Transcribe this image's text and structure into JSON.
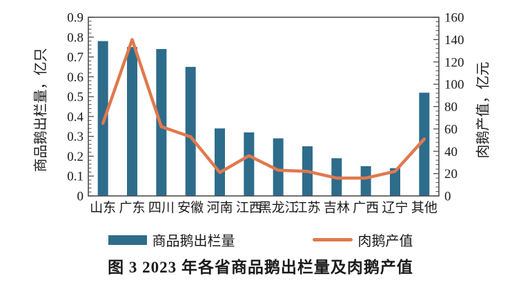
{
  "figure": {
    "caption": "图 3  2023 年各省商品鹅出栏量及肉鹅产值"
  },
  "colors": {
    "bar": "#2e6c8c",
    "line": "#e0794e",
    "axis": "#4d4d4d",
    "text": "#1a1a1a"
  },
  "chart_data": {
    "type": "bar+line combo, dual y-axis",
    "categories": [
      "山东",
      "广东",
      "四川",
      "安徽",
      "河南",
      "江西",
      "黑龙江",
      "江苏",
      "吉林",
      "广西",
      "辽宁",
      "其他"
    ],
    "series": [
      {
        "name": "商品鹅出栏量",
        "type": "bar",
        "axis": "left",
        "color": "#2e6c8c",
        "values": [
          0.78,
          0.75,
          0.74,
          0.65,
          0.34,
          0.32,
          0.29,
          0.25,
          0.19,
          0.15,
          0.14,
          0.52
        ]
      },
      {
        "name": "肉鹅产值",
        "type": "line",
        "axis": "right",
        "color": "#e0794e",
        "values": [
          65,
          140,
          62,
          53,
          21,
          36,
          23,
          22,
          16,
          16,
          22,
          51
        ]
      }
    ],
    "left_axis": {
      "label": "商品鹅出栏量，亿只",
      "min": 0,
      "max": 0.9,
      "major_step": 0.1,
      "minor_step": 0.02
    },
    "right_axis": {
      "label": "肉鹅产值，亿元",
      "min": 0,
      "max": 160,
      "major_step": 20,
      "minor_step": 4
    },
    "legend_position": "bottom",
    "grid": false,
    "title": "图 3  2023 年各省商品鹅出栏量及肉鹅产值"
  },
  "legend": {
    "bar_label": "商品鹅出栏量",
    "line_label": "肉鹅产值"
  }
}
